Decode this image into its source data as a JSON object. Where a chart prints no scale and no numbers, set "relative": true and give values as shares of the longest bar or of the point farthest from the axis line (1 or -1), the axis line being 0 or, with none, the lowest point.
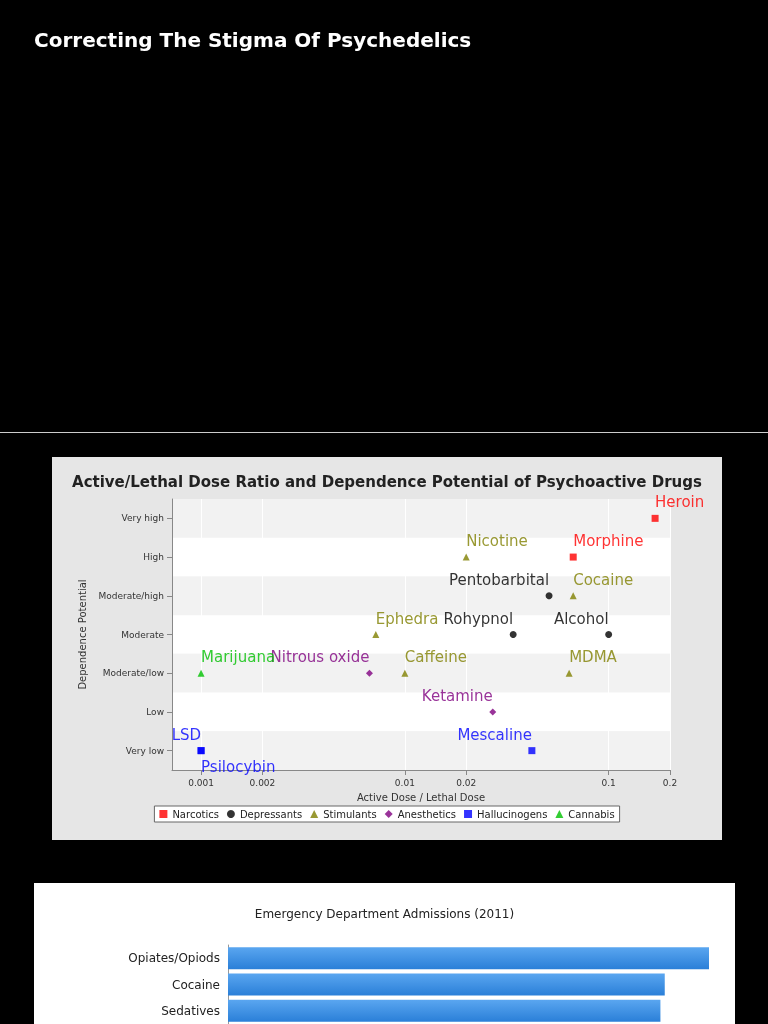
{
  "chart_data": [
    {
      "type": "scatter",
      "orientation": "horizontal",
      "title": "Active/Lethal Dose Ratio and Dependence Potential of Psychoactive Drugs",
      "xlabel": "Active Dose / Lethal Dose",
      "ylabel": "Dependence Potential",
      "annotations": [
        "Correcting The Stigma Of Psychedelics"
      ],
      "log": "x",
      "xlim": [
        0.00072,
        0.2
      ],
      "xticks": [
        0.001,
        0.002,
        0.01,
        0.02,
        0.1,
        0.2
      ],
      "categories": [
        "Very high",
        "High",
        "Moderate/high",
        "Moderate",
        "Moderate/low",
        "Low",
        "Very low"
      ],
      "grid": true,
      "legend": "bottom",
      "series": [
        {
          "name": "Narcotics",
          "color": "#ff0000",
          "marker": "square",
          "x": [
            "Very high",
            "High"
          ],
          "values": [
            0.169,
            0.067
          ],
          "value_labels": [
            "Heroin",
            "Morphine"
          ]
        },
        {
          "name": "Depressants",
          "color": "#000000",
          "marker": "circle",
          "x": [
            "Moderate/high",
            "Moderate",
            "Moderate"
          ],
          "values": [
            0.051,
            0.034,
            0.1
          ],
          "value_labels": [
            "Pentobarbital",
            "Rohypnol",
            "Alcohol"
          ]
        },
        {
          "name": "Stimulants",
          "color": "#808000",
          "marker": "triangle",
          "x": [
            "High",
            "Moderate/high",
            "Moderate",
            "Moderate/low",
            "Moderate/low"
          ],
          "values": [
            0.02,
            0.067,
            0.0072,
            0.01,
            0.064
          ],
          "value_labels": [
            "Nicotine",
            "Cocaine",
            "Ephedra",
            "Caffeine",
            "MDMA"
          ]
        },
        {
          "name": "Anesthetics",
          "color": "#800080",
          "marker": "diamond",
          "x": [
            "Moderate/low",
            "Low"
          ],
          "values": [
            0.0067,
            0.027
          ],
          "value_labels": [
            "Nitrous oxide",
            "Ketamine"
          ]
        },
        {
          "name": "Hallucinogens",
          "color": "#0000ff",
          "marker": "square",
          "x": [
            "Very low",
            "Very low",
            "Very low"
          ],
          "values": [
            0.001,
            0.001,
            0.042
          ],
          "value_labels": [
            "LSD",
            "Psilocybin",
            "Mescaline"
          ]
        },
        {
          "name": "Cannabis",
          "color": "#00c000",
          "marker": "triangle",
          "x": [
            "Moderate/low"
          ],
          "values": [
            0.001
          ],
          "value_labels": [
            "Marijuana"
          ]
        }
      ]
    },
    {
      "type": "bar",
      "orientation": "horizontal",
      "relative": true,
      "title": "Emergency Department Admissions (2011)",
      "categories": [
        "Opiates/Opiods",
        "Cocaine",
        "Sedatives"
      ],
      "values": [
        1,
        0.908,
        0.899
      ],
      "color": "#2a7fd8"
    }
  ]
}
